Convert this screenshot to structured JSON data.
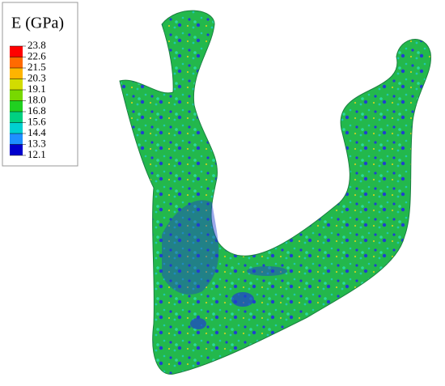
{
  "legend": {
    "title": "E (GPa)",
    "labels": [
      "23.8",
      "22.6",
      "21.5",
      "20.3",
      "19.1",
      "18.0",
      "16.8",
      "15.6",
      "14.4",
      "13.3",
      "12.1"
    ],
    "colors": [
      "#ff0000",
      "#ff6a00",
      "#ffb400",
      "#d2dc00",
      "#78d800",
      "#20d020",
      "#00d080",
      "#00d0d0",
      "#1e90ff",
      "#0000cd"
    ]
  }
}
